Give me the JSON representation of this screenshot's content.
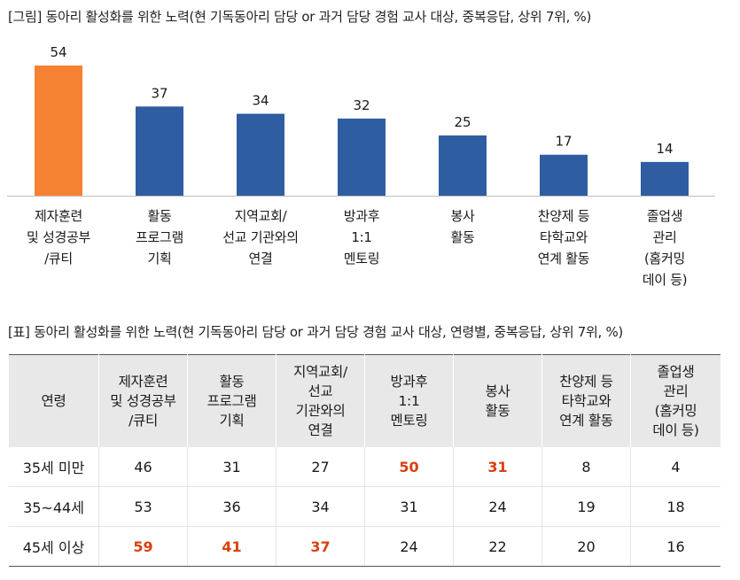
{
  "figure": {
    "caption": "[그림] 동아리 활성화를 위한 노력(현 기독동아리 담당 or 과거 담당 경험 교사 대상, 중복응답, 상위 7위, %)"
  },
  "chart_data": {
    "type": "bar",
    "title": "[그림] 동아리 활성화를 위한 노력(현 기독동아리 담당 or 과거 담당 경험 교사 대상, 중복응답, 상위 7위, %)",
    "categories": [
      "제자훈련\n및 성경공부\n/큐티",
      "활동\n프로그램\n기획",
      "지역교회/\n선교 기관와의\n연결",
      "방과후\n1:1\n멘토링",
      "봉사\n활동",
      "찬양제 등\n타학교와\n연계 활동",
      "졸업생\n관리\n(홈커밍\n데이 등)"
    ],
    "values": [
      54,
      37,
      34,
      32,
      25,
      17,
      14
    ],
    "highlight_index": 0,
    "colors": {
      "highlight": "#f58132",
      "default": "#2e5ea1"
    },
    "ylim": [
      0,
      60
    ],
    "xlabel": "",
    "ylabel": ""
  },
  "table": {
    "caption": "[표] 동아리 활성화를 위한 노력(현 기독동아리 담당 or 과거 담당 경험 교사 대상, 연령별, 중복응답, 상위 7위, %)",
    "headers": [
      "연령",
      "제자훈련\n및 성경공부\n/큐티",
      "활동\n프로그램\n기획",
      "지역교회/\n선교\n기관와의\n연결",
      "방과후\n1:1\n멘토링",
      "봉사\n활동",
      "찬양제 등\n타학교와\n연계 활동",
      "졸업생\n관리\n(홈커밍\n데이 등)"
    ],
    "rows": [
      {
        "label": "35세 미만",
        "values": [
          "46",
          "31",
          "27",
          "50",
          "31",
          "8",
          "4"
        ],
        "highlight": [
          3,
          4
        ]
      },
      {
        "label": "35~44세",
        "values": [
          "53",
          "36",
          "34",
          "31",
          "24",
          "19",
          "18"
        ],
        "highlight": []
      },
      {
        "label": "45세 이상",
        "values": [
          "59",
          "41",
          "37",
          "24",
          "22",
          "20",
          "16"
        ],
        "highlight": [
          0,
          1,
          2
        ]
      }
    ],
    "highlight_color": "#d9410f"
  }
}
